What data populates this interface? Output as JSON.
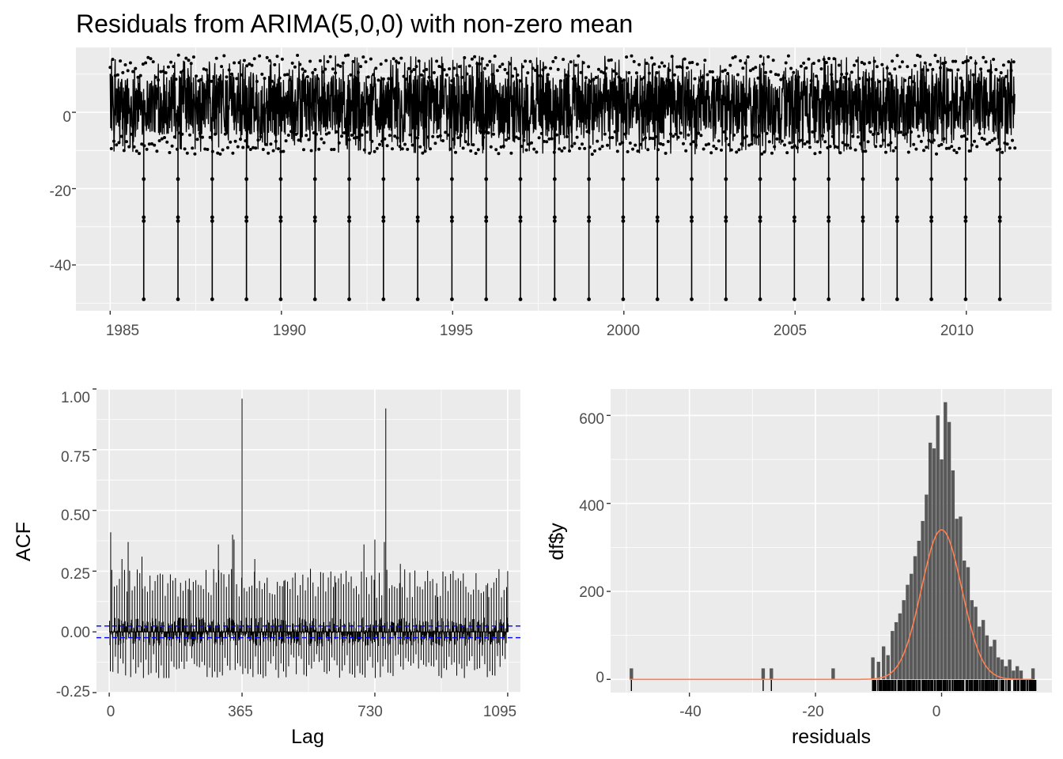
{
  "chart_data": [
    {
      "panel": "residuals-time-series",
      "type": "line",
      "title": "Residuals from ARIMA(5,0,0) with non-zero mean",
      "xlabel": "",
      "ylabel": "",
      "xlim": [
        1984.0,
        2012.5
      ],
      "ylim": [
        -52,
        17
      ],
      "x_ticks": [
        "1985",
        "1990",
        "1995",
        "2000",
        "2005",
        "2010"
      ],
      "y_ticks": [
        "0",
        "-20",
        "-40"
      ],
      "series_range": [
        1985.0,
        2011.42
      ],
      "band": {
        "typical_low": -6,
        "typical_high": 10,
        "max_peak": 15,
        "min_dip": -11
      },
      "annual_spike_years": [
        1985.98,
        1986.98,
        1987.98,
        1988.98,
        1989.98,
        1990.98,
        1991.98,
        1992.98,
        1993.98,
        1994.98,
        1995.98,
        1996.98,
        1997.98,
        1998.98,
        1999.98,
        2000.98,
        2001.98,
        2002.98,
        2003.98,
        2004.98,
        2005.98,
        2006.98,
        2007.98,
        2008.98,
        2009.98,
        2010.98
      ],
      "spike_values": [
        -49,
        -17.5,
        -27.5,
        -28.5
      ],
      "grid": true,
      "point_color": "#000000"
    },
    {
      "panel": "acf",
      "type": "bar",
      "xlabel": "Lag",
      "ylabel": "ACF",
      "xlim": [
        -35,
        1130
      ],
      "ylim": [
        -0.25,
        1.0
      ],
      "x_ticks": [
        "0",
        "365",
        "730",
        "1095"
      ],
      "y_ticks": [
        "1.00",
        "0.75",
        "0.50",
        "0.25",
        "0.00",
        "-0.25"
      ],
      "max_lag": 1096,
      "confidence_bound": 0.024,
      "peaks": [
        {
          "lag": 4,
          "acf": 0.41
        },
        {
          "lag": 35,
          "acf": 0.3
        },
        {
          "lag": 52,
          "acf": 0.37
        },
        {
          "lag": 90,
          "acf": 0.31
        },
        {
          "lag": 140,
          "acf": 0.24
        },
        {
          "lag": 220,
          "acf": 0.22
        },
        {
          "lag": 300,
          "acf": 0.36
        },
        {
          "lag": 339,
          "acf": 0.4
        },
        {
          "lag": 343,
          "acf": 0.38
        },
        {
          "lag": 365,
          "acf": 0.96
        },
        {
          "lag": 400,
          "acf": 0.3
        },
        {
          "lag": 480,
          "acf": 0.21
        },
        {
          "lag": 620,
          "acf": 0.23
        },
        {
          "lag": 700,
          "acf": 0.36
        },
        {
          "lag": 730,
          "acf": 0.38
        },
        {
          "lag": 756,
          "acf": 0.37
        },
        {
          "lag": 760,
          "acf": 0.92
        },
        {
          "lag": 800,
          "acf": 0.28
        },
        {
          "lag": 900,
          "acf": 0.2
        },
        {
          "lag": 1040,
          "acf": 0.2
        },
        {
          "lag": 1095,
          "acf": 0.25
        }
      ],
      "typical_positive": 0.2,
      "typical_negative": -0.15,
      "min_acf": -0.19,
      "grid": true,
      "bar_color": "#000000",
      "bound_color": "#0000ff"
    },
    {
      "panel": "residual-histogram",
      "type": "bar",
      "xlabel": "residuals",
      "ylabel": "df$y",
      "xlim": [
        -52.5,
        17.5
      ],
      "ylim": [
        -30,
        660
      ],
      "x_ticks": [
        "-40",
        "-20",
        "0"
      ],
      "y_ticks": [
        "600",
        "400",
        "200",
        "0"
      ],
      "bins": [
        {
          "x": -49.2,
          "count": 25
        },
        {
          "x": -28.3,
          "count": 25
        },
        {
          "x": -27.0,
          "count": 25
        },
        {
          "x": -17.2,
          "count": 25
        },
        {
          "x": -10.9,
          "count": 50
        },
        {
          "x": -10.0,
          "count": 40
        },
        {
          "x": -9.2,
          "count": 75
        },
        {
          "x": -8.5,
          "count": 55
        },
        {
          "x": -7.8,
          "count": 110
        },
        {
          "x": -7.2,
          "count": 130
        },
        {
          "x": -6.6,
          "count": 150
        },
        {
          "x": -6.0,
          "count": 180
        },
        {
          "x": -5.4,
          "count": 215
        },
        {
          "x": -4.8,
          "count": 240
        },
        {
          "x": -4.2,
          "count": 280
        },
        {
          "x": -3.6,
          "count": 315
        },
        {
          "x": -3.0,
          "count": 360
        },
        {
          "x": -2.4,
          "count": 420
        },
        {
          "x": -1.8,
          "count": 538
        },
        {
          "x": -1.2,
          "count": 525
        },
        {
          "x": -0.6,
          "count": 600
        },
        {
          "x": 0.0,
          "count": 500
        },
        {
          "x": 0.6,
          "count": 630
        },
        {
          "x": 1.2,
          "count": 585
        },
        {
          "x": 1.8,
          "count": 475
        },
        {
          "x": 2.4,
          "count": 365
        },
        {
          "x": 3.0,
          "count": 370
        },
        {
          "x": 3.6,
          "count": 270
        },
        {
          "x": 4.2,
          "count": 255
        },
        {
          "x": 4.8,
          "count": 180
        },
        {
          "x": 5.4,
          "count": 165
        },
        {
          "x": 6.0,
          "count": 120
        },
        {
          "x": 6.6,
          "count": 135
        },
        {
          "x": 7.2,
          "count": 100
        },
        {
          "x": 7.8,
          "count": 75
        },
        {
          "x": 8.4,
          "count": 90
        },
        {
          "x": 9.0,
          "count": 50
        },
        {
          "x": 9.6,
          "count": 45
        },
        {
          "x": 10.2,
          "count": 30
        },
        {
          "x": 10.8,
          "count": 45
        },
        {
          "x": 11.4,
          "count": 20
        },
        {
          "x": 12.0,
          "count": 30
        },
        {
          "x": 12.6,
          "count": 20
        },
        {
          "x": 14.5,
          "count": 25
        }
      ],
      "normal_curve": {
        "mean": 0.0,
        "peak_count": 340,
        "sd": 3.2
      },
      "rug_range": [
        -11,
        15
      ],
      "grid": true,
      "bar_color": "#595959",
      "curve_color": "#ff7f50"
    }
  ]
}
